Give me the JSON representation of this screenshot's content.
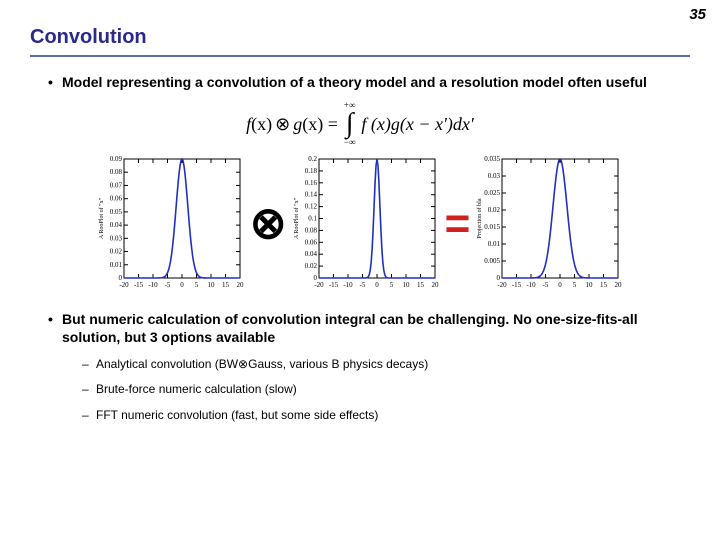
{
  "page_number": "35",
  "title": "Convolution",
  "title_color": "#2a2a8a",
  "title_rule_color": "#5b6ea5",
  "bullets": {
    "b1": "Model representing a convolution of a theory model and a resolution model often useful",
    "b2": "But numeric calculation of convolution integral can be challenging. No one-size-fits-all solution, but 3 options available",
    "sub1": "Analytical convolution (BW⊗Gauss, various B physics decays)",
    "sub2": "Brute-force numeric calculation (slow)",
    "sub3": "FFT numeric convolution (fast, but some side effects)"
  },
  "formula": {
    "lhs_f": "f",
    "lhs_arg": "(x)",
    "otimes": "⊗",
    "lhs_g": "g",
    "lhs_garg": "(x) =",
    "upper": "+∞",
    "lower": "−∞",
    "rhs": "f (x)g(x − x′)dx′"
  },
  "operators": {
    "conv": "⊗",
    "eq": "=",
    "eq_color": "#d02020"
  },
  "chart_style": {
    "curve_color": "#2030c0",
    "curve_width": 1.6,
    "axis_color": "#000000",
    "xrange": [
      -20,
      20
    ],
    "xticks": [
      -20,
      -15,
      -10,
      -5,
      0,
      5,
      10,
      15,
      20
    ],
    "tick_fontsize": 7,
    "ylabel_fontsize": 6,
    "background": "#ffffff",
    "series": [
      {
        "ylabel": "A RooPlot of \"x\"",
        "ymax": 0.09,
        "peak": 0.09,
        "sigma": 2.0,
        "yticks": [
          0,
          0.01,
          0.02,
          0.03,
          0.04,
          0.05,
          0.06,
          0.07,
          0.08,
          0.09
        ]
      },
      {
        "ylabel": "A RooPlot of \"x\"",
        "ymax": 0.2,
        "peak": 0.2,
        "sigma": 1.0,
        "yticks": [
          0,
          0.02,
          0.04,
          0.06,
          0.08,
          0.1,
          0.12,
          0.14,
          0.16,
          0.18,
          0.2
        ]
      },
      {
        "ylabel": "Projection of bla",
        "ymax": 0.035,
        "peak": 0.035,
        "sigma": 2.4,
        "yticks": [
          0,
          0.005,
          0.01,
          0.015,
          0.02,
          0.025,
          0.03,
          0.035
        ]
      }
    ]
  }
}
